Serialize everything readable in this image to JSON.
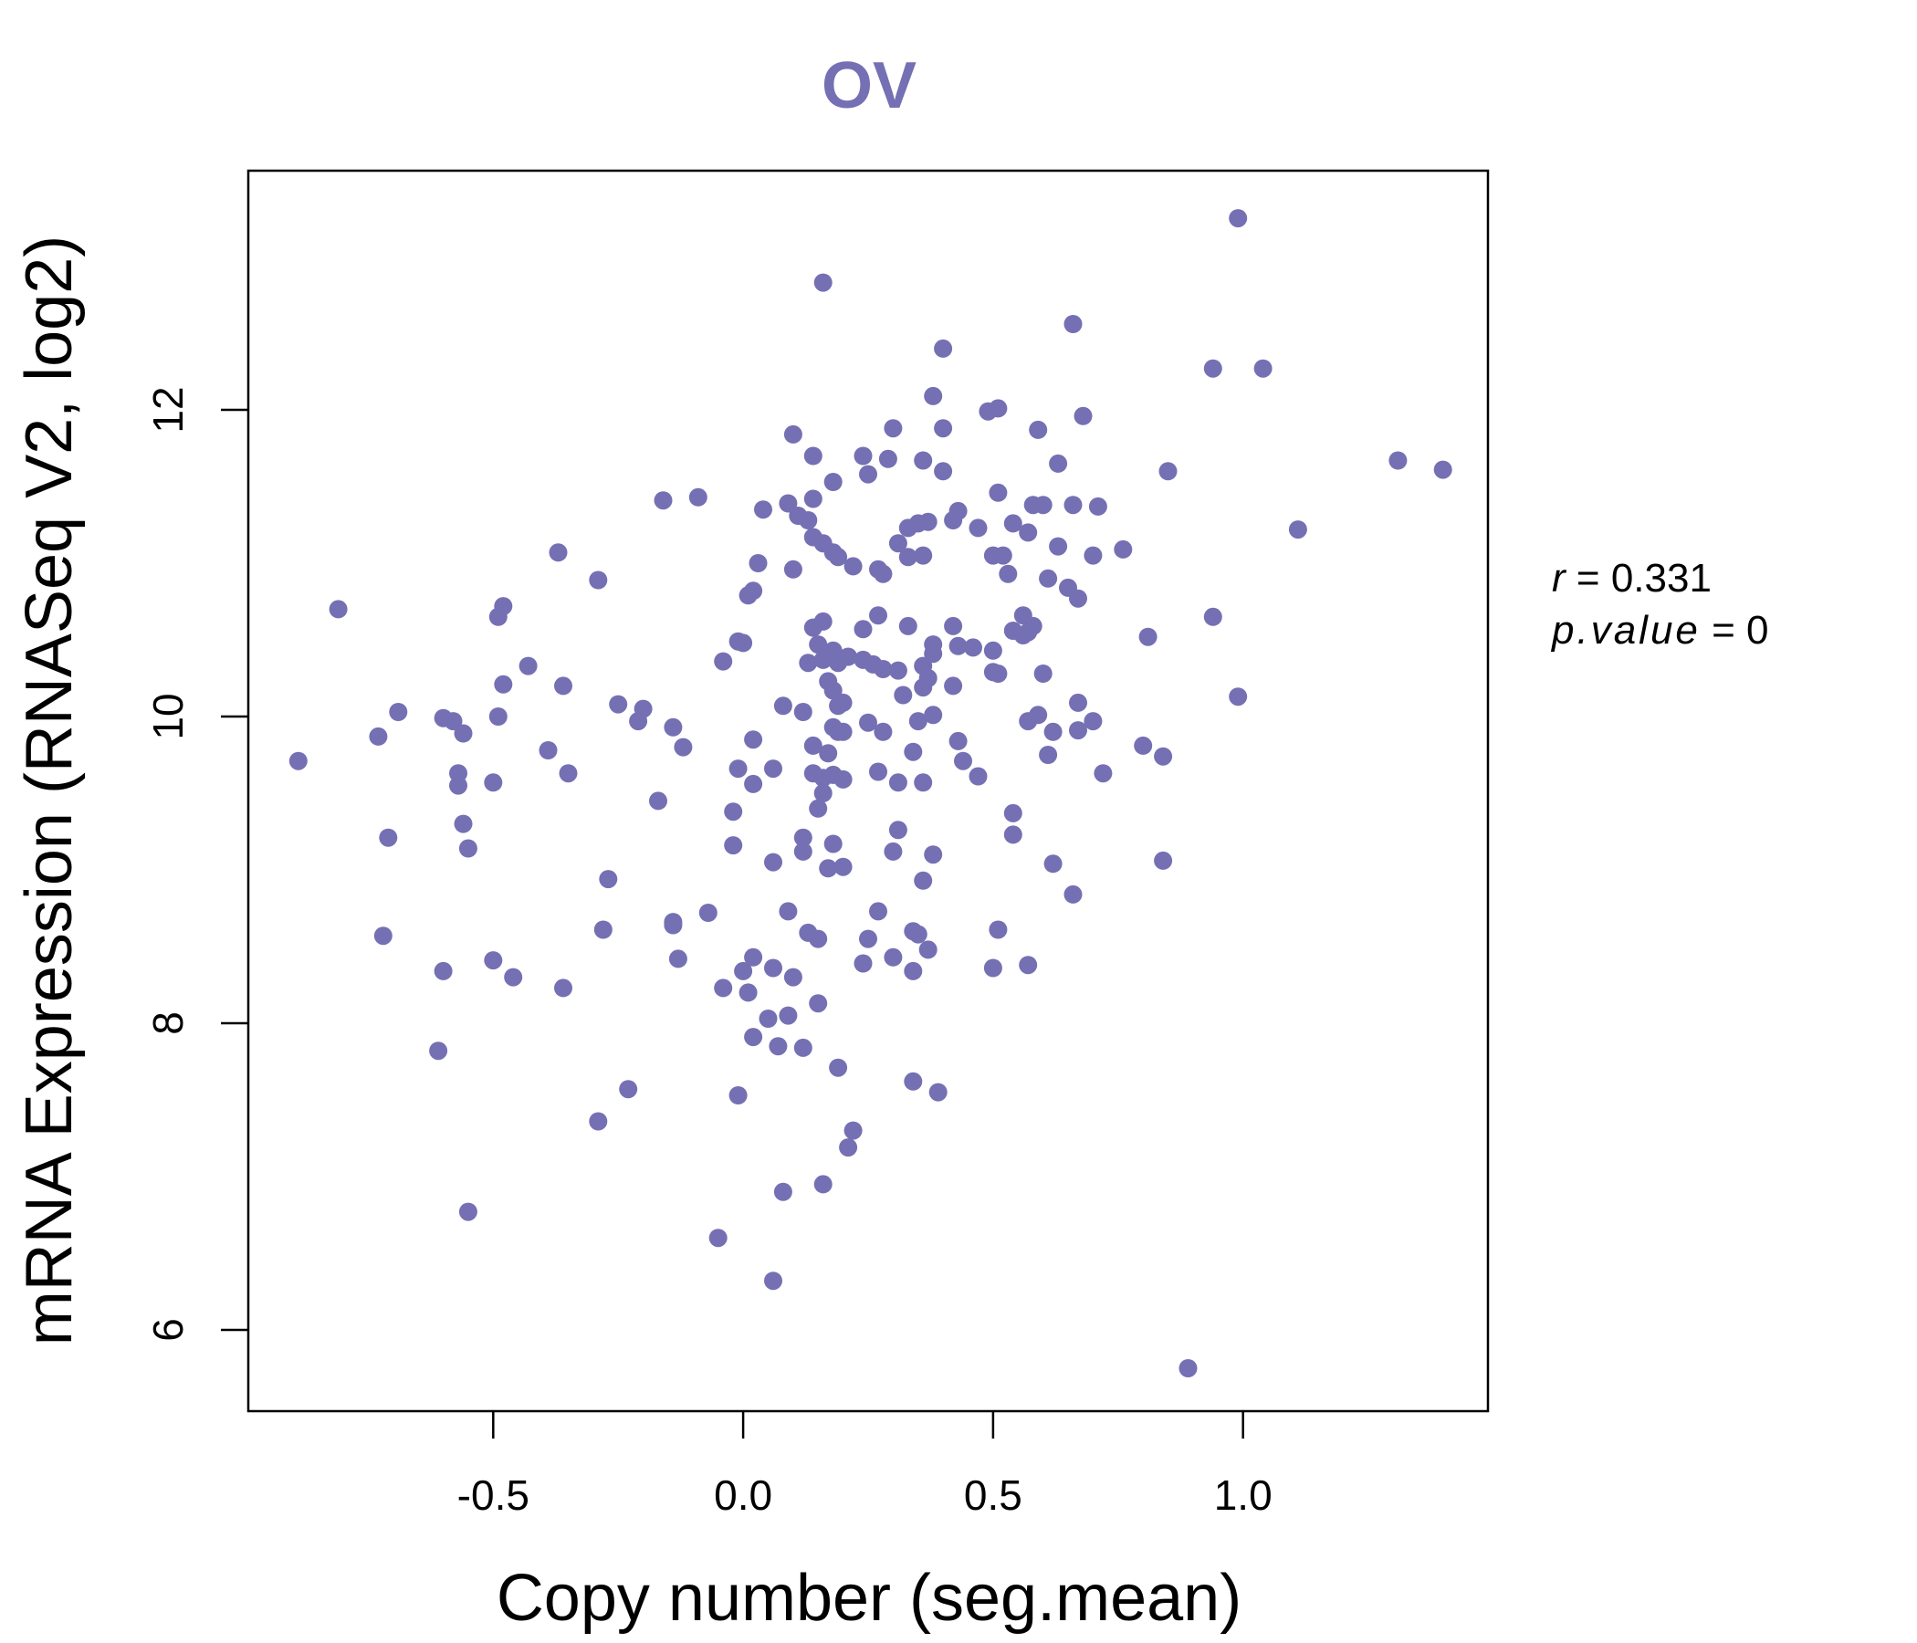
{
  "colors": {
    "accent": "#7570b3",
    "axis": "#000000",
    "background": "#ffffff"
  },
  "chart_data": {
    "type": "scatter",
    "title": "OV",
    "xlabel": "Copy number (seg.mean)",
    "ylabel": "mRNA Expression (RNASeq V2, log2)",
    "xlim": [
      -0.99,
      1.49
    ],
    "ylim": [
      5.47,
      13.56
    ],
    "x_ticks": [
      -0.5,
      0.0,
      0.5,
      1.0
    ],
    "x_tick_labels": [
      "-0.5",
      "0.0",
      "0.5",
      "1.0"
    ],
    "y_ticks": [
      6,
      8,
      10,
      12
    ],
    "y_tick_labels": [
      "6",
      "8",
      "10",
      "12"
    ],
    "grid": false,
    "legend": "none",
    "annotation": {
      "r_label": "r",
      "r_value": "0.331",
      "p_label": "p.value",
      "p_value": "0"
    },
    "points": [
      [
        0.99,
        13.25
      ],
      [
        0.16,
        12.83
      ],
      [
        0.66,
        12.56
      ],
      [
        0.4,
        12.4
      ],
      [
        0.94,
        12.27
      ],
      [
        1.04,
        12.27
      ],
      [
        0.38,
        12.09
      ],
      [
        0.51,
        12.01
      ],
      [
        0.49,
        11.99
      ],
      [
        0.68,
        11.96
      ],
      [
        0.3,
        11.88
      ],
      [
        0.4,
        11.88
      ],
      [
        0.59,
        11.87
      ],
      [
        0.1,
        11.84
      ],
      [
        0.24,
        11.7
      ],
      [
        0.14,
        11.7
      ],
      [
        0.29,
        11.68
      ],
      [
        0.36,
        11.67
      ],
      [
        0.63,
        11.65
      ],
      [
        1.31,
        11.67
      ],
      [
        1.4,
        11.61
      ],
      [
        0.85,
        11.6
      ],
      [
        0.4,
        11.6
      ],
      [
        0.25,
        11.58
      ],
      [
        0.18,
        11.53
      ],
      [
        0.51,
        11.46
      ],
      [
        0.14,
        11.42
      ],
      [
        -0.16,
        11.41
      ],
      [
        -0.09,
        11.43
      ],
      [
        0.09,
        11.39
      ],
      [
        0.04,
        11.35
      ],
      [
        0.58,
        11.38
      ],
      [
        0.6,
        11.38
      ],
      [
        0.66,
        11.38
      ],
      [
        0.71,
        11.37
      ],
      [
        0.43,
        11.34
      ],
      [
        0.11,
        11.31
      ],
      [
        0.13,
        11.28
      ],
      [
        0.37,
        11.27
      ],
      [
        0.35,
        11.26
      ],
      [
        0.42,
        11.28
      ],
      [
        0.54,
        11.26
      ],
      [
        0.33,
        11.23
      ],
      [
        0.47,
        11.23
      ],
      [
        0.57,
        11.2
      ],
      [
        1.11,
        11.22
      ],
      [
        0.14,
        11.17
      ],
      [
        0.16,
        11.13
      ],
      [
        0.31,
        11.13
      ],
      [
        0.63,
        11.11
      ],
      [
        0.76,
        11.09
      ],
      [
        0.18,
        11.07
      ],
      [
        0.19,
        11.04
      ],
      [
        0.33,
        11.04
      ],
      [
        0.36,
        11.05
      ],
      [
        0.5,
        11.05
      ],
      [
        0.52,
        11.05
      ],
      [
        0.7,
        11.05
      ],
      [
        -0.37,
        11.07
      ],
      [
        0.03,
        11.0
      ],
      [
        0.22,
        10.98
      ],
      [
        0.1,
        10.96
      ],
      [
        0.27,
        10.96
      ],
      [
        0.28,
        10.93
      ],
      [
        0.53,
        10.93
      ],
      [
        0.61,
        10.9
      ],
      [
        0.65,
        10.84
      ],
      [
        -0.29,
        10.89
      ],
      [
        0.02,
        10.82
      ],
      [
        0.01,
        10.79
      ],
      [
        0.67,
        10.77
      ],
      [
        -0.48,
        10.72
      ],
      [
        -0.81,
        10.7
      ],
      [
        0.27,
        10.66
      ],
      [
        0.56,
        10.66
      ],
      [
        0.94,
        10.65
      ],
      [
        -0.49,
        10.65
      ],
      [
        0.16,
        10.62
      ],
      [
        0.14,
        10.58
      ],
      [
        0.33,
        10.59
      ],
      [
        0.42,
        10.59
      ],
      [
        0.58,
        10.59
      ],
      [
        0.24,
        10.57
      ],
      [
        0.54,
        10.56
      ],
      [
        0.57,
        10.55
      ],
      [
        0.56,
        10.53
      ],
      [
        0.81,
        10.52
      ],
      [
        -0.01,
        10.49
      ],
      [
        0.0,
        10.48
      ],
      [
        0.15,
        10.47
      ],
      [
        0.38,
        10.47
      ],
      [
        0.43,
        10.46
      ],
      [
        0.46,
        10.45
      ],
      [
        0.18,
        10.43
      ],
      [
        0.5,
        10.43
      ],
      [
        0.38,
        10.41
      ],
      [
        0.21,
        10.39
      ],
      [
        0.16,
        10.37
      ],
      [
        0.24,
        10.37
      ],
      [
        0.13,
        10.35
      ],
      [
        0.19,
        10.35
      ],
      [
        0.26,
        10.34
      ],
      [
        0.36,
        10.33
      ],
      [
        0.28,
        10.31
      ],
      [
        -0.43,
        10.33
      ],
      [
        -0.04,
        10.36
      ],
      [
        0.31,
        10.3
      ],
      [
        0.5,
        10.29
      ],
      [
        0.51,
        10.28
      ],
      [
        0.6,
        10.28
      ],
      [
        0.37,
        10.25
      ],
      [
        0.17,
        10.23
      ],
      [
        -0.48,
        10.21
      ],
      [
        -0.36,
        10.2
      ],
      [
        0.36,
        10.19
      ],
      [
        0.42,
        10.2
      ],
      [
        0.18,
        10.17
      ],
      [
        0.32,
        10.14
      ],
      [
        0.99,
        10.13
      ],
      [
        0.2,
        10.09
      ],
      [
        -0.25,
        10.08
      ],
      [
        0.08,
        10.07
      ],
      [
        0.19,
        10.07
      ],
      [
        0.67,
        10.09
      ],
      [
        -0.2,
        10.05
      ],
      [
        -0.69,
        10.03
      ],
      [
        0.12,
        10.03
      ],
      [
        0.59,
        10.01
      ],
      [
        0.38,
        10.01
      ],
      [
        -0.49,
        10.0
      ],
      [
        -0.6,
        9.99
      ],
      [
        -0.58,
        9.97
      ],
      [
        -0.21,
        9.97
      ],
      [
        0.57,
        9.97
      ],
      [
        0.25,
        9.96
      ],
      [
        0.35,
        9.97
      ],
      [
        0.7,
        9.97
      ],
      [
        0.62,
        9.9
      ],
      [
        0.18,
        9.93
      ],
      [
        0.19,
        9.9
      ],
      [
        0.2,
        9.9
      ],
      [
        0.28,
        9.9
      ],
      [
        0.67,
        9.91
      ],
      [
        -0.73,
        9.87
      ],
      [
        -0.56,
        9.89
      ],
      [
        -0.14,
        9.93
      ],
      [
        0.02,
        9.85
      ],
      [
        0.43,
        9.84
      ],
      [
        0.8,
        9.81
      ],
      [
        0.14,
        9.81
      ],
      [
        -0.39,
        9.78
      ],
      [
        -0.12,
        9.8
      ],
      [
        0.34,
        9.77
      ],
      [
        0.17,
        9.76
      ],
      [
        0.61,
        9.75
      ],
      [
        0.84,
        9.74
      ],
      [
        0.44,
        9.71
      ],
      [
        -0.89,
        9.71
      ],
      [
        0.06,
        9.66
      ],
      [
        -0.01,
        9.66
      ],
      [
        -0.35,
        9.63
      ],
      [
        -0.57,
        9.63
      ],
      [
        0.14,
        9.63
      ],
      [
        0.18,
        9.62
      ],
      [
        0.27,
        9.64
      ],
      [
        0.47,
        9.61
      ],
      [
        0.72,
        9.63
      ],
      [
        0.16,
        9.6
      ],
      [
        0.2,
        9.59
      ],
      [
        0.31,
        9.57
      ],
      [
        0.36,
        9.57
      ],
      [
        -0.57,
        9.55
      ],
      [
        0.02,
        9.56
      ],
      [
        -0.5,
        9.57
      ],
      [
        0.16,
        9.5
      ],
      [
        -0.17,
        9.45
      ],
      [
        0.15,
        9.4
      ],
      [
        0.54,
        9.37
      ],
      [
        -0.02,
        9.38
      ],
      [
        -0.56,
        9.3
      ],
      [
        0.31,
        9.26
      ],
      [
        0.54,
        9.23
      ],
      [
        -0.71,
        9.21
      ],
      [
        0.12,
        9.21
      ],
      [
        0.18,
        9.17
      ],
      [
        -0.02,
        9.16
      ],
      [
        -0.55,
        9.14
      ],
      [
        0.12,
        9.12
      ],
      [
        0.3,
        9.12
      ],
      [
        0.38,
        9.1
      ],
      [
        0.06,
        9.05
      ],
      [
        0.62,
        9.04
      ],
      [
        0.84,
        9.06
      ],
      [
        0.17,
        9.01
      ],
      [
        0.2,
        9.02
      ],
      [
        -0.27,
        8.94
      ],
      [
        0.36,
        8.93
      ],
      [
        0.66,
        8.84
      ],
      [
        0.09,
        8.73
      ],
      [
        -0.07,
        8.72
      ],
      [
        0.27,
        8.73
      ],
      [
        -0.14,
        8.66
      ],
      [
        -0.14,
        8.64
      ],
      [
        -0.28,
        8.61
      ],
      [
        0.13,
        8.59
      ],
      [
        0.51,
        8.61
      ],
      [
        -0.72,
        8.57
      ],
      [
        0.15,
        8.55
      ],
      [
        0.34,
        8.6
      ],
      [
        0.35,
        8.58
      ],
      [
        0.25,
        8.55
      ],
      [
        0.37,
        8.48
      ],
      [
        0.3,
        8.43
      ],
      [
        0.02,
        8.43
      ],
      [
        -0.13,
        8.42
      ],
      [
        -0.5,
        8.41
      ],
      [
        0.24,
        8.39
      ],
      [
        0.57,
        8.38
      ],
      [
        0.5,
        8.36
      ],
      [
        0.06,
        8.36
      ],
      [
        0.34,
        8.34
      ],
      [
        -0.6,
        8.34
      ],
      [
        0.0,
        8.34
      ],
      [
        -0.46,
        8.3
      ],
      [
        0.1,
        8.3
      ],
      [
        -0.04,
        8.23
      ],
      [
        -0.36,
        8.23
      ],
      [
        0.01,
        8.2
      ],
      [
        0.15,
        8.13
      ],
      [
        0.09,
        8.05
      ],
      [
        0.05,
        8.03
      ],
      [
        0.02,
        7.91
      ],
      [
        0.07,
        7.85
      ],
      [
        0.12,
        7.84
      ],
      [
        -0.61,
        7.82
      ],
      [
        0.19,
        7.71
      ],
      [
        0.34,
        7.62
      ],
      [
        -0.23,
        7.57
      ],
      [
        0.39,
        7.55
      ],
      [
        -0.01,
        7.53
      ],
      [
        -0.29,
        7.36
      ],
      [
        0.22,
        7.3
      ],
      [
        0.21,
        7.19
      ],
      [
        0.16,
        6.95
      ],
      [
        0.08,
        6.9
      ],
      [
        -0.55,
        6.77
      ],
      [
        -0.05,
        6.6
      ],
      [
        0.06,
        6.32
      ],
      [
        0.89,
        5.75
      ]
    ]
  }
}
